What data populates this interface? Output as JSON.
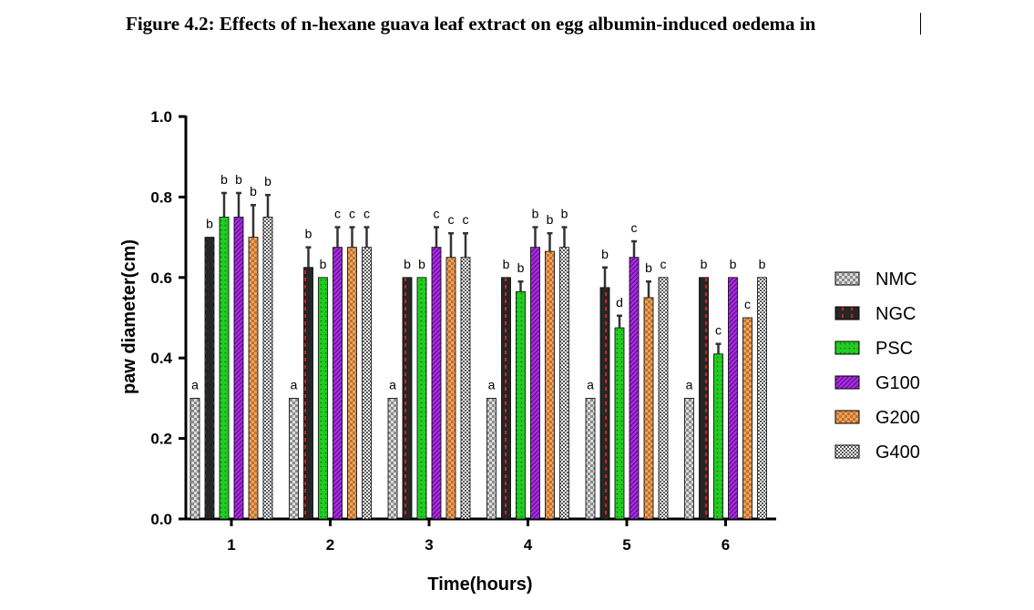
{
  "figure_title": "Figure 4.2: Effects of n-hexane guava leaf extract on egg albumin-induced oedema in",
  "chart_data": {
    "type": "bar",
    "title": "Figure 4.2: Effects of n-hexane guava leaf extract on egg albumin-induced oedema in",
    "xlabel": "Time(hours)",
    "ylabel": "paw diameter(cm)",
    "ylim": [
      0,
      1.0
    ],
    "yticks": [
      "0.0",
      "0.2",
      "0.4",
      "0.6",
      "0.8",
      "1.0"
    ],
    "categories": [
      "1",
      "2",
      "3",
      "4",
      "5",
      "6"
    ],
    "legend_position": "right",
    "series": [
      {
        "name": "NMC",
        "pattern": "checker-gray",
        "color": "#b0b0b0",
        "values": [
          0.3,
          0.3,
          0.3,
          0.3,
          0.3,
          0.3
        ],
        "errors": [
          0,
          0,
          0,
          0,
          0,
          0
        ],
        "labels": [
          "a",
          "a",
          "a",
          "a",
          "a",
          "a"
        ]
      },
      {
        "name": "NGC",
        "pattern": "red-dash-black",
        "color": "#2a2a2a",
        "values": [
          0.7,
          0.625,
          0.6,
          0.6,
          0.575,
          0.6
        ],
        "errors": [
          0,
          0.05,
          0,
          0,
          0.05,
          0
        ],
        "labels": [
          "b",
          "b",
          "b",
          "b",
          "b",
          "b"
        ]
      },
      {
        "name": "PSC",
        "pattern": "green-dots",
        "color": "#22cc22",
        "values": [
          0.75,
          0.6,
          0.6,
          0.565,
          0.475,
          0.41
        ],
        "errors": [
          0.06,
          0,
          0,
          0.025,
          0.03,
          0.025
        ],
        "labels": [
          "b",
          "b",
          "b",
          "b",
          "d",
          "c"
        ]
      },
      {
        "name": "G100",
        "pattern": "purple-hatch",
        "color": "#9922dd",
        "values": [
          0.75,
          0.675,
          0.675,
          0.675,
          0.65,
          0.6
        ],
        "errors": [
          0.06,
          0.05,
          0.05,
          0.05,
          0.04,
          0
        ],
        "labels": [
          "b",
          "c",
          "c",
          "b",
          "c",
          "b"
        ]
      },
      {
        "name": "G200",
        "pattern": "orange-check",
        "color": "#cc7a2e",
        "values": [
          0.7,
          0.675,
          0.65,
          0.665,
          0.55,
          0.5
        ],
        "errors": [
          0.08,
          0.05,
          0.06,
          0.045,
          0.04,
          0
        ],
        "labels": [
          "b",
          "c",
          "c",
          "b",
          "b",
          "c"
        ]
      },
      {
        "name": "G400",
        "pattern": "bw-checker",
        "color": "#777777",
        "values": [
          0.75,
          0.675,
          0.65,
          0.675,
          0.6,
          0.6
        ],
        "errors": [
          0.055,
          0.05,
          0.06,
          0.05,
          0,
          0
        ],
        "labels": [
          "b",
          "c",
          "c",
          "b",
          "c",
          "b"
        ]
      }
    ]
  }
}
